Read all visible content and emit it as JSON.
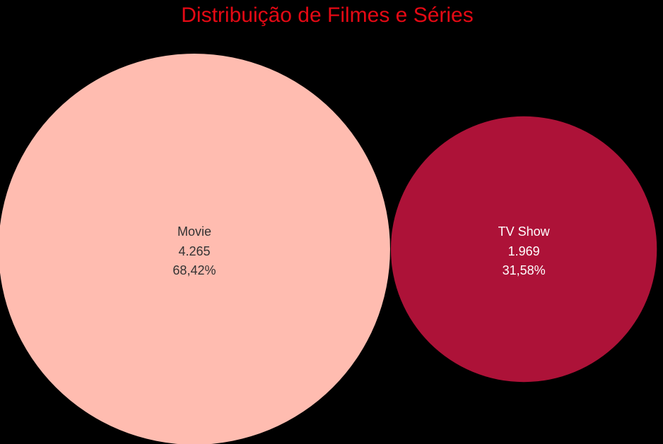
{
  "chart_data": {
    "type": "bubble",
    "title": "Distribuição de Filmes e Séries",
    "categories": [
      "Movie",
      "TV Show"
    ],
    "values": [
      4265,
      1969
    ],
    "value_labels": [
      "4.265",
      "1.969"
    ],
    "shares": [
      68.42,
      31.58
    ],
    "share_labels": [
      "68,42%",
      "31,58%"
    ],
    "colors": [
      "#ffbcb0",
      "#ad1238"
    ]
  }
}
